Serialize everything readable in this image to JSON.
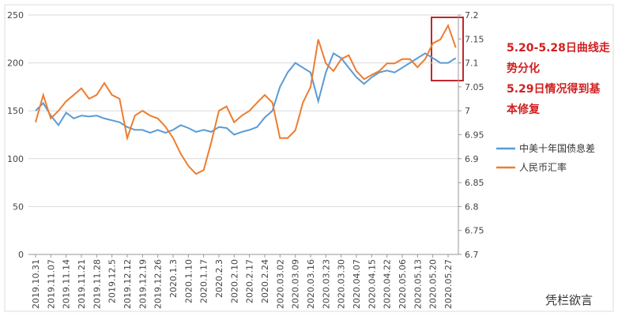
{
  "chart_data": {
    "type": "line",
    "categories": [
      "2019.10.31",
      null,
      "2019.11.07",
      null,
      "2019.11.14",
      null,
      "2019.11.21",
      null,
      "2019.11.28",
      null,
      "2019.12.5",
      null,
      "2019.12.12",
      null,
      "2019.12.19",
      null,
      "2019.12.26",
      null,
      "2020.1.3",
      null,
      "2020.1.10",
      null,
      "2020.1.17",
      null,
      "2020.2.3",
      null,
      "2020.2.10",
      null,
      "2020.2.17",
      null,
      "2020.2.24",
      null,
      "2020.03.02",
      null,
      "2020.03.09",
      null,
      "2020.03.16",
      null,
      "2020.03.23",
      null,
      "2020.03.30",
      null,
      "2020.04.07",
      null,
      "2020.04.15",
      null,
      "2020.04.22",
      null,
      "2020.05.06",
      null,
      "2020.05.13",
      null,
      "2020.05.20",
      null,
      "2020.05.27",
      null
    ],
    "series": [
      {
        "name": "中美十年国债息差",
        "color": "#5b9bd5",
        "values": [
          150,
          158,
          145,
          135,
          148,
          142,
          145,
          144,
          145,
          142,
          140,
          138,
          133,
          130,
          130,
          127,
          130,
          127,
          130,
          135,
          132,
          128,
          130,
          128,
          133,
          132,
          125,
          128,
          130,
          133,
          143,
          150,
          175,
          190,
          200,
          195,
          190,
          160,
          190,
          210,
          205,
          195,
          185,
          178,
          185,
          190,
          192,
          190,
          195,
          200,
          205,
          210,
          205,
          200,
          200,
          205
        ]
      },
      {
        "name": "人民币汇率",
        "color": "#ed7d31",
        "axis": "y2",
        "values": [
          6.976,
          7.033,
          6.984,
          7.0,
          7.02,
          7.033,
          7.047,
          7.025,
          7.033,
          7.058,
          7.033,
          7.025,
          6.943,
          6.99,
          7.0,
          6.99,
          6.984,
          6.967,
          6.943,
          6.91,
          6.885,
          6.868,
          6.876,
          6.934,
          7.0,
          7.009,
          6.976,
          6.99,
          7.0,
          7.017,
          7.033,
          7.017,
          6.943,
          6.943,
          6.959,
          7.017,
          7.05,
          7.149,
          7.099,
          7.083,
          7.108,
          7.116,
          7.083,
          7.066,
          7.075,
          7.083,
          7.099,
          7.099,
          7.108,
          7.108,
          7.091,
          7.108,
          7.141,
          7.149,
          7.178,
          7.132
        ]
      }
    ],
    "ylim": [
      0,
      250
    ],
    "yticks": [
      0,
      50,
      100,
      150,
      200,
      250
    ],
    "y2lim": [
      6.7,
      7.2
    ],
    "y2ticks": [
      6.7,
      6.75,
      6.8,
      6.85,
      6.9,
      6.95,
      7,
      7.05,
      7.1,
      7.15,
      7.2
    ],
    "grid": true,
    "legend": "right",
    "annotation": [
      "5.20-5.28日曲线走",
      "势分化",
      "5.29日情况得到基",
      "本修复"
    ],
    "watermark": "凭栏欲言"
  }
}
